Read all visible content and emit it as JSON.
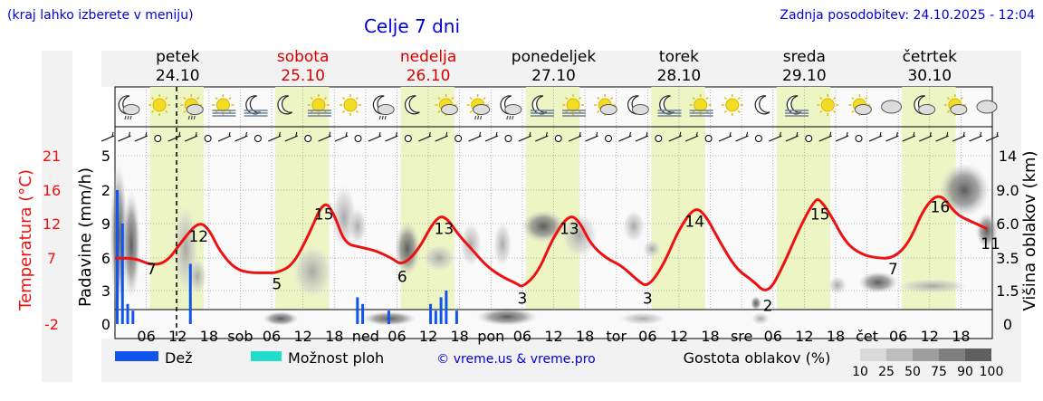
{
  "header": {
    "city_hint": "(kraj lahko izberete v meniju)",
    "title": "Celje 7 dni",
    "last_update": "Zadnja posodobitev: 24.10.2025 - 12:04"
  },
  "days": [
    {
      "name": "petek",
      "date": "24.10",
      "weekend": false
    },
    {
      "name": "sobota",
      "date": "25.10",
      "weekend": true
    },
    {
      "name": "nedelja",
      "date": "26.10",
      "weekend": true
    },
    {
      "name": "ponedeljek",
      "date": "27.10",
      "weekend": false
    },
    {
      "name": "torek",
      "date": "28.10",
      "weekend": false
    },
    {
      "name": "sreda",
      "date": "29.10",
      "weekend": false
    },
    {
      "name": "četrtek",
      "date": "30.10",
      "weekend": false
    }
  ],
  "x_tick_labels": [
    "06",
    "12",
    "18",
    "sob",
    "06",
    "12",
    "18",
    "ned",
    "06",
    "12",
    "18",
    "pon",
    "06",
    "12",
    "18",
    "tor",
    "06",
    "12",
    "18",
    "sre",
    "06",
    "12",
    "18",
    "čet",
    "06",
    "12",
    "18"
  ],
  "axes": {
    "temp_label": "Temperatura (°C)",
    "temp_ticks": [
      "21",
      "16",
      "12",
      "7",
      "-2"
    ],
    "precip_label": "Padavine (mm/h)",
    "precip_ticks": [
      "5",
      "2",
      "9",
      "6",
      "3",
      "0"
    ],
    "cloud_height_label": "Višina oblakov (km)",
    "cloud_height_ticks": [
      "14",
      "9.0",
      "6.0",
      "3.5",
      "1.5",
      "0"
    ]
  },
  "legend": {
    "rain": "Dež",
    "storm": "Možnost ploh",
    "credit": "© vreme.us & vreme.pro",
    "density_label": "Gostota oblakov (%)",
    "density_ticks": [
      "10",
      "25",
      "50",
      "75",
      "90",
      "100"
    ]
  },
  "colors": {
    "temperature": "#ee1111",
    "rain": "#1155ee",
    "storm": "#22ddcc",
    "daylight": "#eef5c4",
    "weekend_text": "#dd0000",
    "title_text": "#0000dd"
  },
  "icons": [
    "moon-cloud-rain",
    "sun",
    "sun-cloud-rain",
    "sun-fog",
    "moon-fog",
    "moon",
    "sun-fog",
    "sun",
    "moon-cloud-rain",
    "moon",
    "sun-cloud",
    "sun-cloud-rain",
    "moon-cloud-rain",
    "moon-fog",
    "sun-fog",
    "sun-cloud",
    "moon-cloud",
    "moon-fog",
    "sun-fog",
    "sun",
    "moon",
    "moon-fog",
    "sun",
    "sun-cloud",
    "cloud",
    "moon-cloud",
    "sun-cloud",
    "cloud"
  ],
  "chart_data": {
    "type": "line",
    "title": "Celje 7 dni",
    "x_hours_start": "24.10.2025 00:00",
    "temperature_labels": [
      {
        "hour": 7,
        "value": 7
      },
      {
        "hour": 16,
        "value": 12
      },
      {
        "hour": 31,
        "value": 5
      },
      {
        "hour": 40,
        "value": 15
      },
      {
        "hour": 55,
        "value": 6
      },
      {
        "hour": 63,
        "value": 13
      },
      {
        "hour": 78,
        "value": 3
      },
      {
        "hour": 87,
        "value": 13
      },
      {
        "hour": 102,
        "value": 3
      },
      {
        "hour": 111,
        "value": 14
      },
      {
        "hour": 125,
        "value": 2
      },
      {
        "hour": 135,
        "value": 15
      },
      {
        "hour": 149,
        "value": 7
      },
      {
        "hour": 158,
        "value": 16
      },
      {
        "hour": 167,
        "value": 11
      }
    ],
    "temperature_curve": [
      [
        0,
        7
      ],
      [
        4,
        7
      ],
      [
        7,
        6
      ],
      [
        10,
        6.5
      ],
      [
        13,
        9.5
      ],
      [
        16,
        12
      ],
      [
        18,
        11
      ],
      [
        20,
        8
      ],
      [
        23,
        5.5
      ],
      [
        26,
        5
      ],
      [
        29,
        5
      ],
      [
        31,
        5
      ],
      [
        34,
        6
      ],
      [
        37,
        10
      ],
      [
        40,
        15
      ],
      [
        42,
        13
      ],
      [
        44,
        9
      ],
      [
        47,
        8.5
      ],
      [
        50,
        8
      ],
      [
        53,
        7
      ],
      [
        55,
        6
      ],
      [
        58,
        8
      ],
      [
        61,
        12
      ],
      [
        63,
        13
      ],
      [
        66,
        10
      ],
      [
        68,
        8.5
      ],
      [
        71,
        6
      ],
      [
        74,
        4.5
      ],
      [
        77,
        3.5
      ],
      [
        78,
        3
      ],
      [
        81,
        5
      ],
      [
        84,
        10
      ],
      [
        87,
        13
      ],
      [
        89,
        12
      ],
      [
        91,
        9
      ],
      [
        94,
        7
      ],
      [
        97,
        6
      ],
      [
        100,
        4
      ],
      [
        102,
        3
      ],
      [
        105,
        6
      ],
      [
        108,
        11
      ],
      [
        111,
        14
      ],
      [
        113,
        13
      ],
      [
        116,
        9
      ],
      [
        119,
        5.5
      ],
      [
        122,
        4
      ],
      [
        125,
        2
      ],
      [
        128,
        6
      ],
      [
        131,
        11
      ],
      [
        134,
        15
      ],
      [
        135,
        15
      ],
      [
        137,
        13
      ],
      [
        140,
        9
      ],
      [
        143,
        7.5
      ],
      [
        146,
        7
      ],
      [
        149,
        7
      ],
      [
        152,
        9
      ],
      [
        155,
        14
      ],
      [
        158,
        16
      ],
      [
        161,
        13
      ],
      [
        164,
        12
      ],
      [
        167,
        11
      ]
    ],
    "precipitation_mm_h": [
      {
        "hour": 0,
        "value": 2
      },
      {
        "hour": 1,
        "value": 1.5
      },
      {
        "hour": 2,
        "value": 0.3
      },
      {
        "hour": 3,
        "value": 0.2
      },
      {
        "hour": 14,
        "value": 0.9
      },
      {
        "hour": 46,
        "value": 0.4
      },
      {
        "hour": 47,
        "value": 0.3
      },
      {
        "hour": 52,
        "value": 0.2
      },
      {
        "hour": 60,
        "value": 0.3
      },
      {
        "hour": 61,
        "value": 0.2
      },
      {
        "hour": 62,
        "value": 0.4
      },
      {
        "hour": 63,
        "value": 0.5
      },
      {
        "hour": 65,
        "value": 0.2
      }
    ],
    "xlabel": "",
    "ylabel": "Temperatura (°C)"
  }
}
